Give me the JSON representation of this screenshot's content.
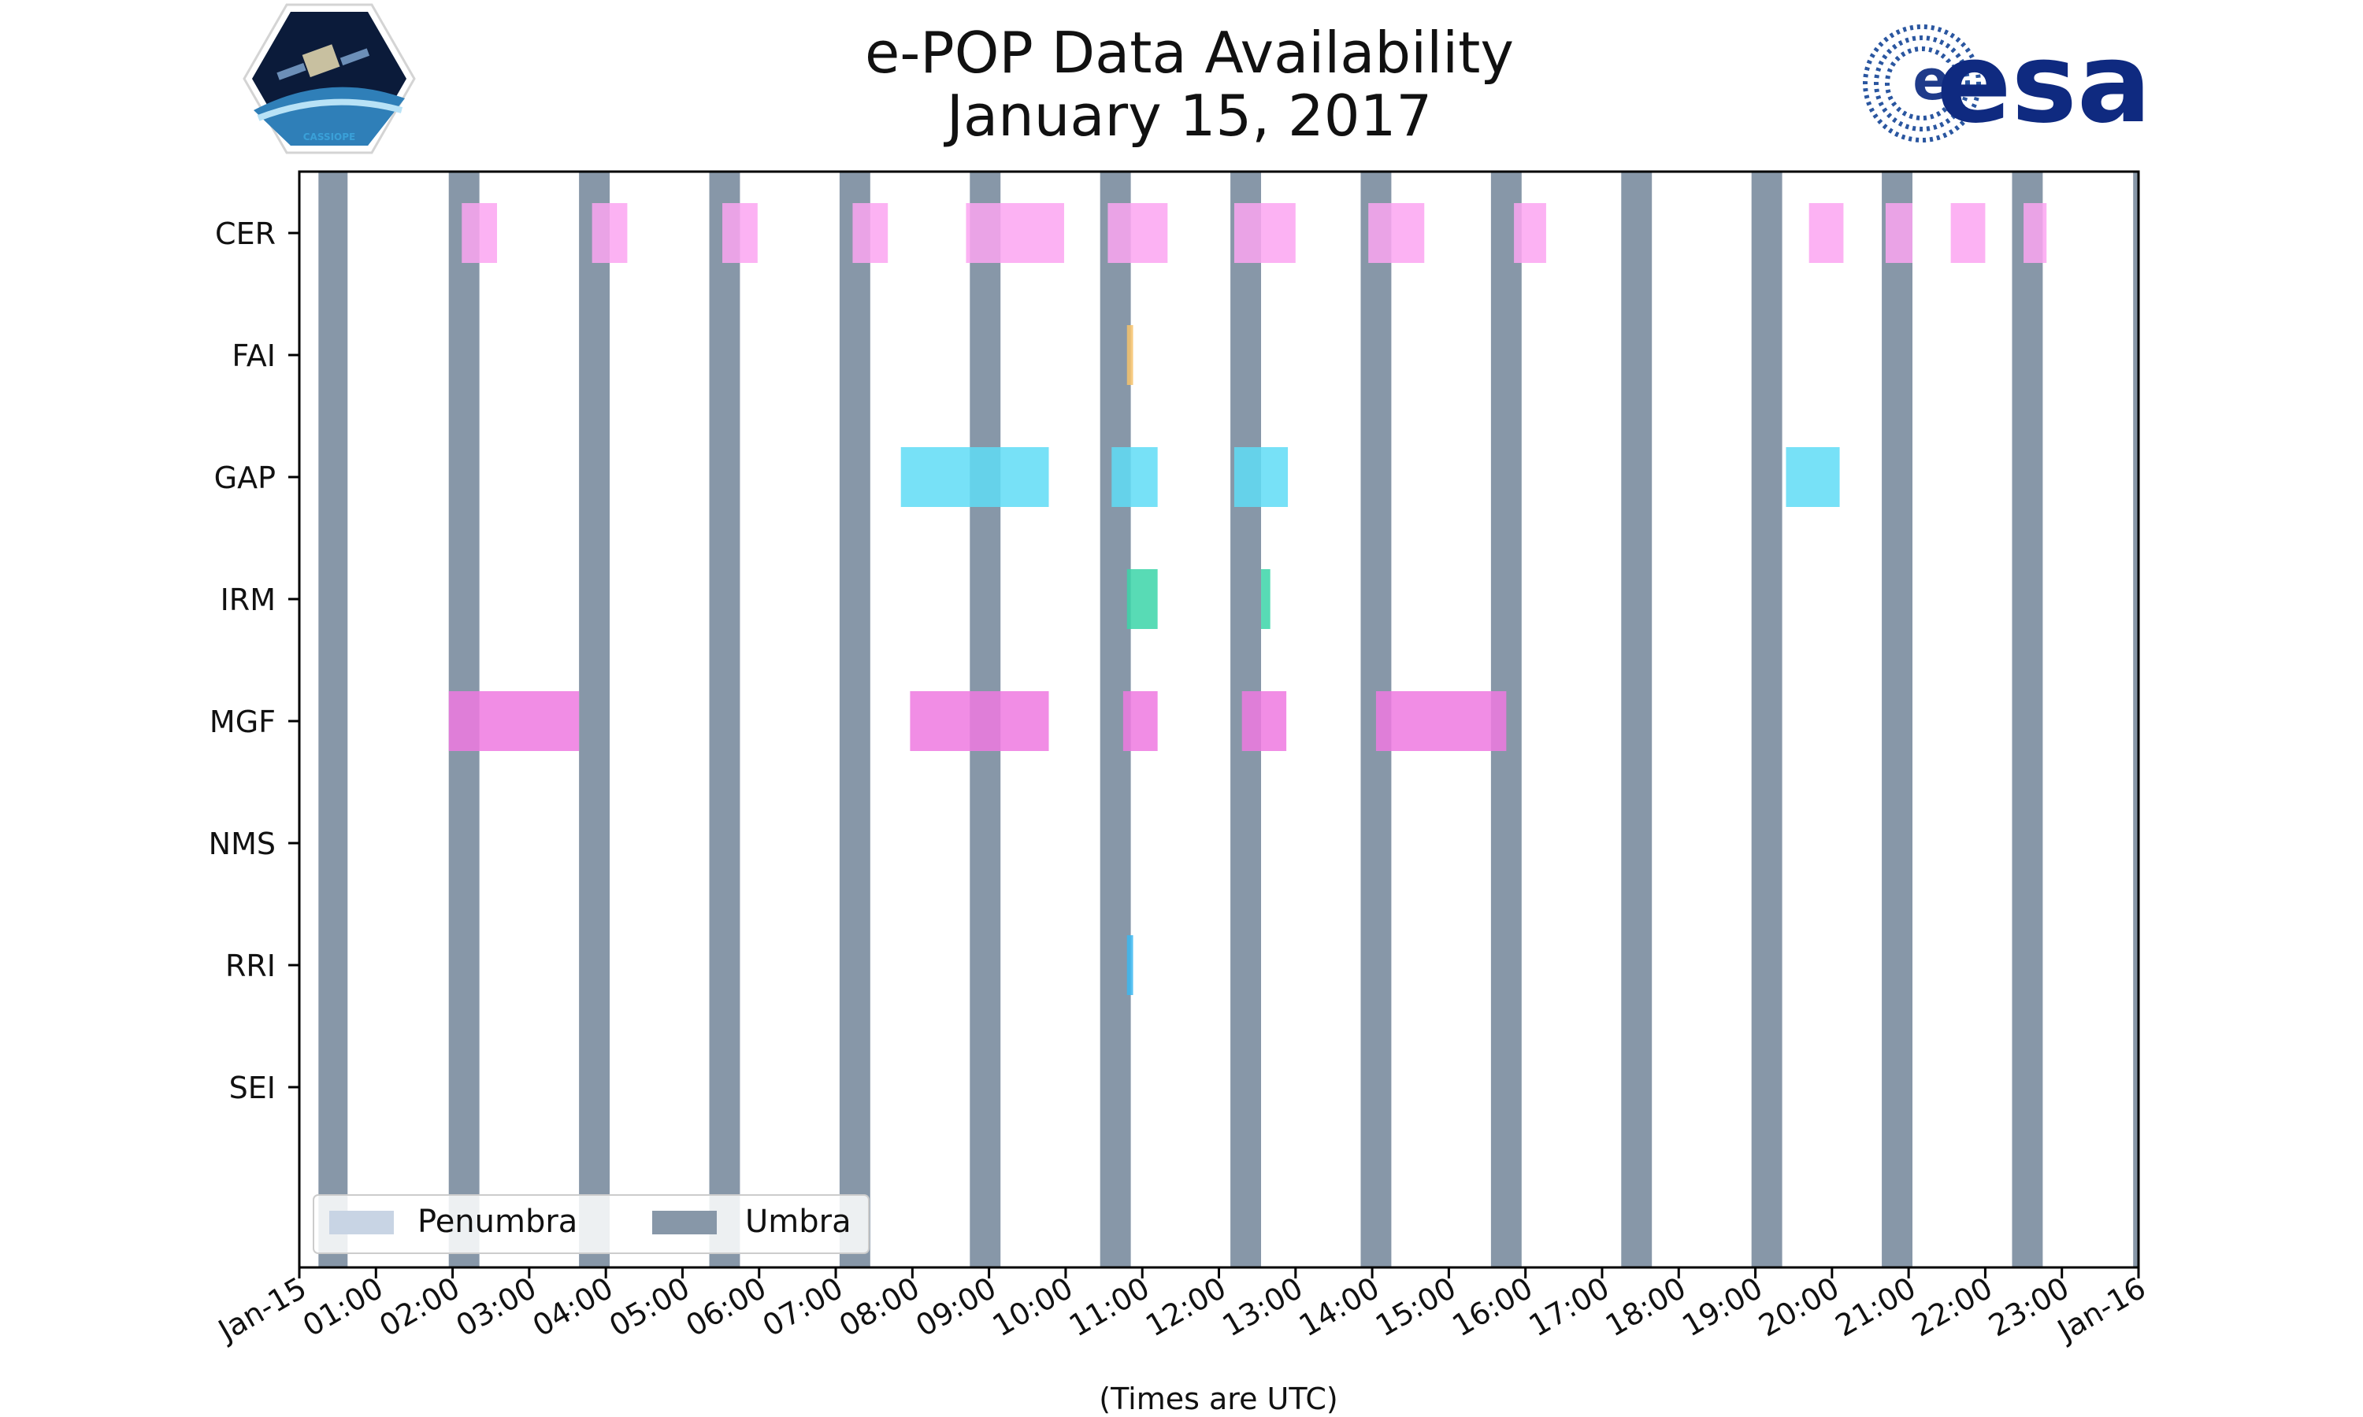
{
  "chart_data": {
    "type": "timeline",
    "title": "e-POP Data Availability",
    "subtitle": "January 15, 2017",
    "xlabel": "(Times are UTC)",
    "xlim_hours": [
      0,
      24
    ],
    "x_tick_labels": [
      "Jan-15",
      "01:00",
      "02:00",
      "03:00",
      "04:00",
      "05:00",
      "06:00",
      "07:00",
      "08:00",
      "09:00",
      "10:00",
      "11:00",
      "12:00",
      "13:00",
      "14:00",
      "15:00",
      "16:00",
      "17:00",
      "18:00",
      "19:00",
      "20:00",
      "21:00",
      "22:00",
      "23:00",
      "Jan-16"
    ],
    "instruments": [
      "CER",
      "FAI",
      "GAP",
      "IRM",
      "MGF",
      "NMS",
      "RRI",
      "SEI"
    ],
    "colors": {
      "CER": "#fca5f1",
      "FAI": "#f6c26b",
      "GAP": "#5fdcf6",
      "IRM": "#3bd5a8",
      "MGF": "#ef79e0",
      "RRI": "#3bb7f0",
      "umbra": "#8797a8",
      "penumbra": "#c8d4e4"
    },
    "legend": {
      "position": "lower-left",
      "penumbra_label": "Penumbra",
      "umbra_label": "Umbra"
    },
    "umbra_intervals_hours": [
      [
        0.25,
        0.63
      ],
      [
        1.95,
        2.35
      ],
      [
        3.65,
        4.05
      ],
      [
        5.35,
        5.75
      ],
      [
        7.05,
        7.45
      ],
      [
        8.75,
        9.15
      ],
      [
        10.45,
        10.85
      ],
      [
        12.15,
        12.55
      ],
      [
        13.85,
        14.25
      ],
      [
        15.55,
        15.95
      ],
      [
        17.25,
        17.65
      ],
      [
        18.95,
        19.35
      ],
      [
        20.65,
        21.05
      ],
      [
        22.35,
        22.75
      ],
      [
        23.93,
        24.0
      ]
    ],
    "series": [
      {
        "name": "CER",
        "intervals_hours": [
          [
            2.12,
            2.58
          ],
          [
            3.82,
            4.28
          ],
          [
            5.52,
            5.98
          ],
          [
            7.22,
            7.68
          ],
          [
            8.7,
            9.98
          ],
          [
            10.55,
            11.33
          ],
          [
            12.2,
            13.0
          ],
          [
            13.95,
            14.68
          ],
          [
            15.85,
            16.27
          ],
          [
            19.7,
            20.15
          ],
          [
            20.7,
            21.05
          ],
          [
            21.55,
            22.0
          ],
          [
            22.5,
            22.8
          ]
        ]
      },
      {
        "name": "FAI",
        "intervals_hours": [
          [
            10.8,
            10.88
          ]
        ]
      },
      {
        "name": "GAP",
        "intervals_hours": [
          [
            7.85,
            9.78
          ],
          [
            10.6,
            11.2
          ],
          [
            12.2,
            12.9
          ],
          [
            19.4,
            20.1
          ]
        ]
      },
      {
        "name": "IRM",
        "intervals_hours": [
          [
            10.8,
            11.2
          ],
          [
            12.55,
            12.67
          ]
        ]
      },
      {
        "name": "MGF",
        "intervals_hours": [
          [
            1.95,
            3.65
          ],
          [
            7.97,
            9.78
          ],
          [
            10.75,
            11.2
          ],
          [
            12.3,
            12.88
          ],
          [
            14.05,
            15.75
          ]
        ]
      },
      {
        "name": "NMS",
        "intervals_hours": []
      },
      {
        "name": "RRI",
        "intervals_hours": [
          [
            10.8,
            10.88
          ]
        ]
      },
      {
        "name": "SEI",
        "intervals_hours": []
      }
    ]
  }
}
